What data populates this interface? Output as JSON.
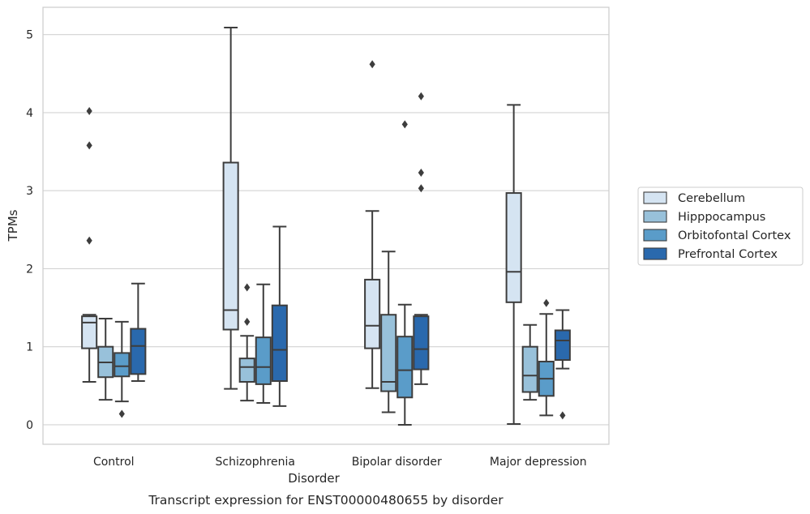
{
  "chart_data": {
    "type": "box",
    "categories": [
      "Control",
      "Schizophrenia",
      "Bipolar disorder",
      "Major depression"
    ],
    "xlabel": "Disorder",
    "ylabel": "TPMs",
    "caption": "Transcript expression for ENST00000480655 by disorder",
    "ylim": [
      -0.25,
      5.35
    ],
    "yticks": [
      0,
      1,
      2,
      3,
      4,
      5
    ],
    "grid": "horizontal",
    "legend_position": "right",
    "series": [
      {
        "name": "Cerebellum",
        "color": "#d5e4f2",
        "boxes": [
          {
            "whislo": 0.55,
            "q1": 0.98,
            "med": 1.31,
            "q3": 1.39,
            "whishi": 1.41,
            "fliers": [
              2.36,
              3.58,
              4.02
            ]
          },
          {
            "whislo": 0.46,
            "q1": 1.22,
            "med": 1.47,
            "q3": 3.36,
            "whishi": 5.09,
            "fliers": []
          },
          {
            "whislo": 0.47,
            "q1": 0.98,
            "med": 1.27,
            "q3": 1.86,
            "whishi": 2.74,
            "fliers": [
              4.62
            ]
          },
          {
            "whislo": 0.01,
            "q1": 1.57,
            "med": 1.96,
            "q3": 2.97,
            "whishi": 4.1,
            "fliers": []
          }
        ]
      },
      {
        "name": "Hipppocampus",
        "color": "#98c1da",
        "boxes": [
          {
            "whislo": 0.32,
            "q1": 0.61,
            "med": 0.8,
            "q3": 1.0,
            "whishi": 1.36,
            "fliers": []
          },
          {
            "whislo": 0.31,
            "q1": 0.55,
            "med": 0.74,
            "q3": 0.85,
            "whishi": 1.14,
            "fliers": [
              1.32,
              1.76
            ]
          },
          {
            "whislo": 0.16,
            "q1": 0.43,
            "med": 0.55,
            "q3": 1.41,
            "whishi": 2.22,
            "fliers": []
          },
          {
            "whislo": 0.32,
            "q1": 0.42,
            "med": 0.63,
            "q3": 1.0,
            "whishi": 1.28,
            "fliers": []
          }
        ]
      },
      {
        "name": "Orbitofontal Cortex",
        "color": "#5a9cc9",
        "boxes": [
          {
            "whislo": 0.3,
            "q1": 0.62,
            "med": 0.75,
            "q3": 0.92,
            "whishi": 1.32,
            "fliers": [
              0.14
            ]
          },
          {
            "whislo": 0.28,
            "q1": 0.52,
            "med": 0.74,
            "q3": 1.12,
            "whishi": 1.8,
            "fliers": []
          },
          {
            "whislo": 0.0,
            "q1": 0.35,
            "med": 0.7,
            "q3": 1.13,
            "whishi": 1.54,
            "fliers": [
              3.85
            ]
          },
          {
            "whislo": 0.12,
            "q1": 0.37,
            "med": 0.59,
            "q3": 0.81,
            "whishi": 1.42,
            "fliers": [
              1.56
            ]
          }
        ]
      },
      {
        "name": "Prefrontal Cortex",
        "color": "#2a69ad",
        "boxes": [
          {
            "whislo": 0.56,
            "q1": 0.65,
            "med": 1.01,
            "q3": 1.23,
            "whishi": 1.81,
            "fliers": []
          },
          {
            "whislo": 0.24,
            "q1": 0.56,
            "med": 0.96,
            "q3": 1.53,
            "whishi": 2.54,
            "fliers": []
          },
          {
            "whislo": 0.52,
            "q1": 0.71,
            "med": 0.97,
            "q3": 1.39,
            "whishi": 1.41,
            "fliers": [
              3.03,
              3.23,
              4.21
            ]
          },
          {
            "whislo": 0.72,
            "q1": 0.83,
            "med": 1.08,
            "q3": 1.21,
            "whishi": 1.47,
            "fliers": [
              0.12
            ]
          }
        ]
      }
    ]
  }
}
